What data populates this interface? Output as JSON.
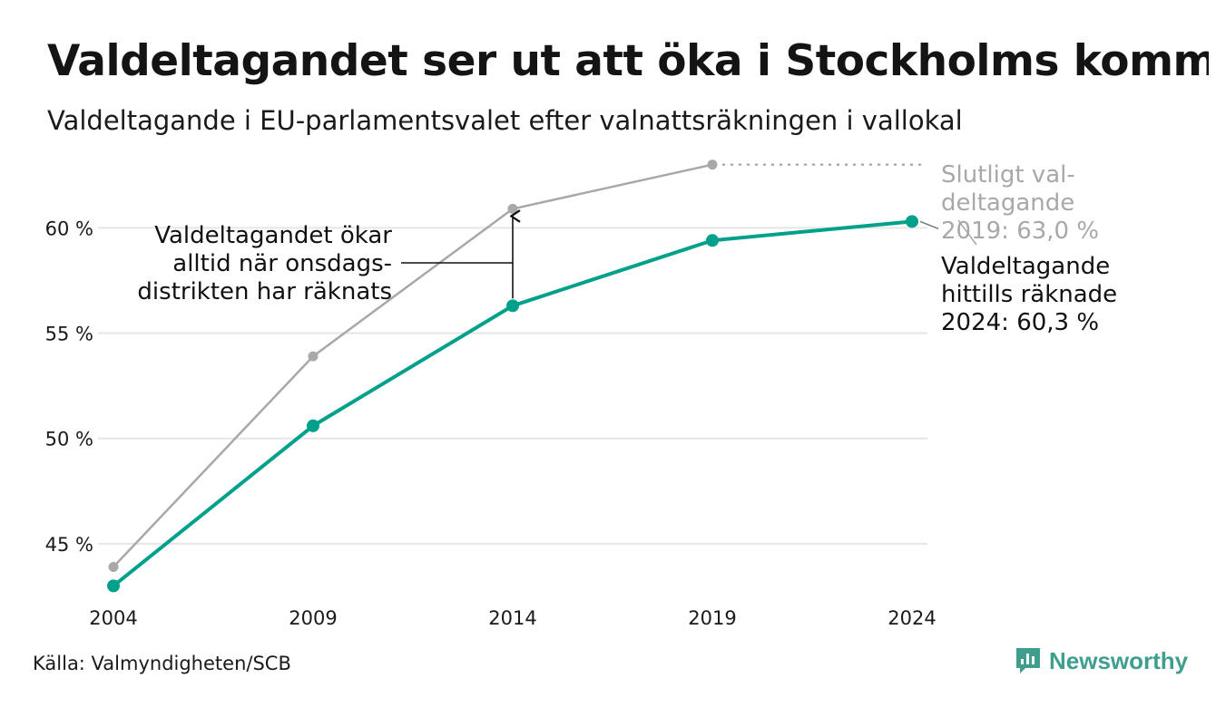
{
  "title": "Valdeltagandet ser ut att öka i Stockholms kommu",
  "subtitle": "Valdeltagande i EU-parlamentsvalet efter valnattsräkningen i vallokal",
  "source": "Källa: Valmyndigheten/SCB",
  "brand": "Newsworthy",
  "colors": {
    "final": "#a8a8a8",
    "preliminary": "#00a08a",
    "grid": "#e6e6e6",
    "text": "#1a1a1a"
  },
  "chart_data": {
    "type": "line",
    "x": [
      2004,
      2009,
      2014,
      2019,
      2024
    ],
    "ylim": [
      42.5,
      63.5
    ],
    "yticks": [
      45,
      50,
      55,
      60
    ],
    "ytick_labels": [
      "45 %",
      "50 %",
      "55 %",
      "60 %"
    ],
    "xtick_labels": [
      "2004",
      "2009",
      "2014",
      "2019",
      "2024"
    ],
    "grid": true,
    "series": [
      {
        "key": "final",
        "values": [
          43.9,
          53.9,
          60.9,
          63.0,
          null
        ]
      },
      {
        "key": "preliminary",
        "values": [
          43.0,
          50.6,
          56.3,
          59.4,
          60.3
        ]
      }
    ],
    "annotations": {
      "increase": [
        "Valdeltagandet ökar",
        "alltid när onsdags-",
        "distrikten har räknats"
      ],
      "final_label": [
        "Slutligt val-",
        "deltagande",
        "2019: 63,0 %"
      ],
      "current_label": [
        "Valdeltagande",
        "hittills räknade",
        "2024: 60,3 %"
      ]
    }
  }
}
